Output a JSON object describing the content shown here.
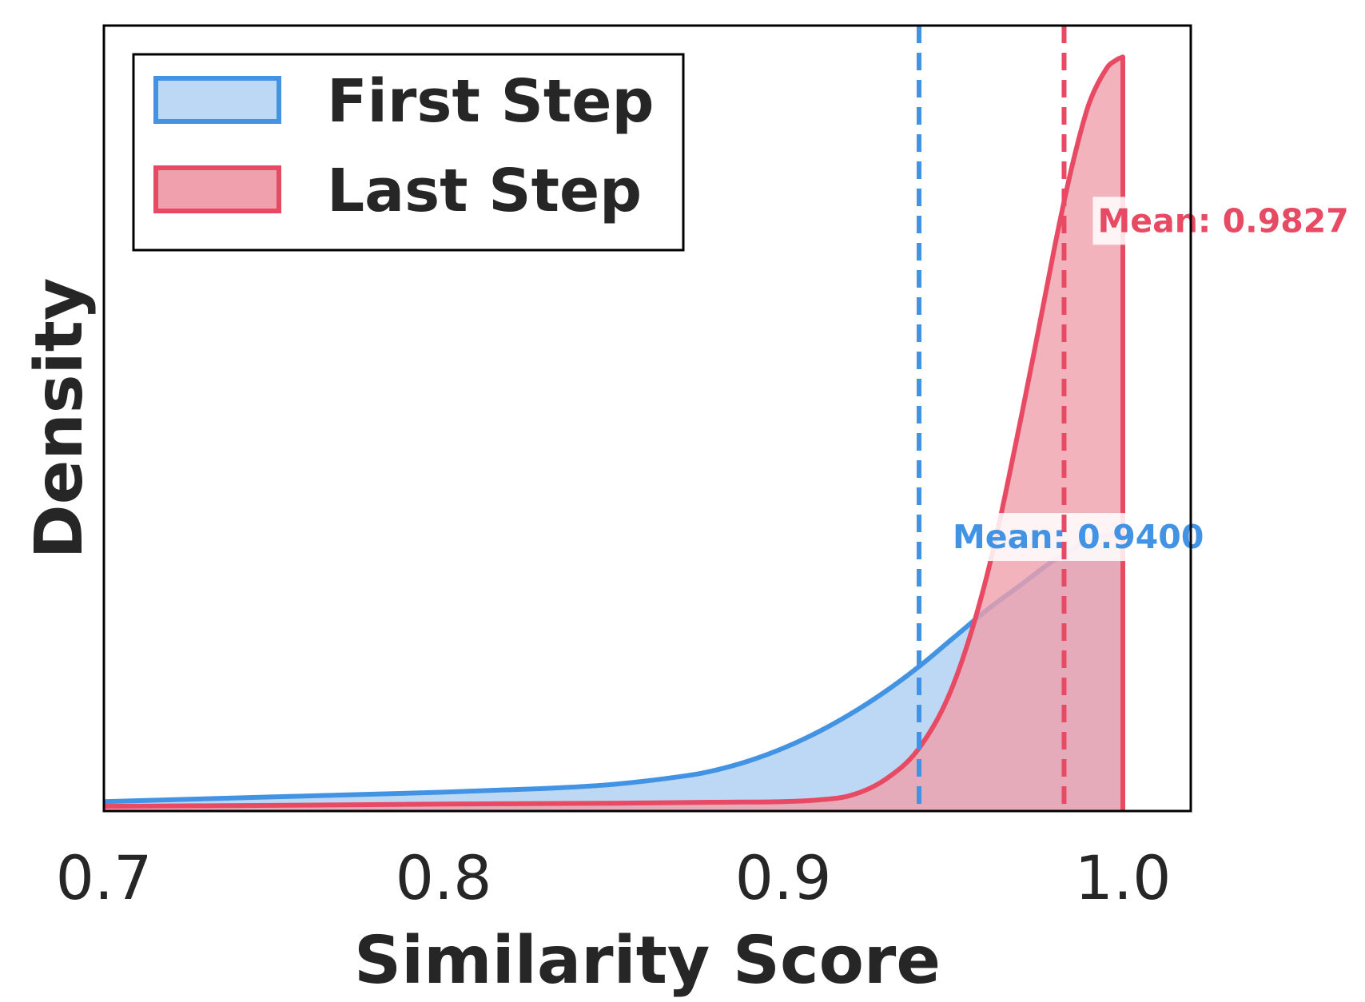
{
  "chart_data": {
    "type": "area",
    "title": "",
    "xlabel": "Similarity Score",
    "ylabel": "Density",
    "xlim": [
      0.7,
      1.02
    ],
    "ylim": [
      0,
      25
    ],
    "x_ticks": [
      "0.7",
      "0.8",
      "0.9",
      "1.0"
    ],
    "y_ticks_shown": false,
    "grid": false,
    "legend_position": "top-left",
    "series": [
      {
        "name": "First Step",
        "color": "#4393E4",
        "fill_color": "#BDD8F4",
        "x": [
          0.7,
          0.75,
          0.8,
          0.83,
          0.85,
          0.87,
          0.88,
          0.89,
          0.9,
          0.91,
          0.92,
          0.93,
          0.94,
          0.95,
          0.96,
          0.97,
          0.98,
          0.99,
          1.0
        ],
        "y": [
          0.3,
          0.45,
          0.6,
          0.72,
          0.85,
          1.1,
          1.3,
          1.6,
          2.0,
          2.5,
          3.1,
          3.8,
          4.6,
          5.5,
          6.4,
          7.2,
          8.0,
          8.6,
          8.9
        ],
        "mean": 0.94,
        "mean_label": "Mean: 0.9400"
      },
      {
        "name": "Last Step",
        "color": "#E84A63",
        "fill_color": "#F0A0AC",
        "x": [
          0.7,
          0.75,
          0.8,
          0.85,
          0.88,
          0.9,
          0.91,
          0.92,
          0.93,
          0.94,
          0.95,
          0.96,
          0.97,
          0.98,
          0.985,
          0.99,
          0.995,
          0.998,
          1.0
        ],
        "y": [
          0.15,
          0.18,
          0.22,
          0.25,
          0.28,
          0.3,
          0.35,
          0.5,
          1.0,
          2.0,
          4.0,
          7.5,
          12.5,
          18.0,
          20.5,
          22.5,
          23.6,
          23.9,
          24.0
        ],
        "mean": 0.9827,
        "mean_label": "Mean: 0.9827"
      }
    ]
  }
}
